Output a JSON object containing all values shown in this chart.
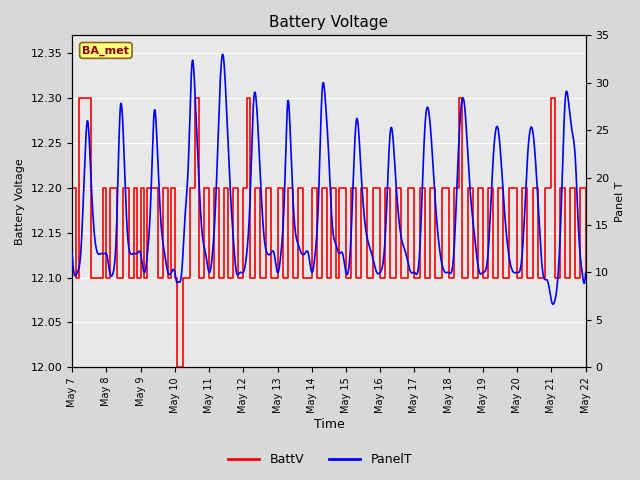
{
  "title": "Battery Voltage",
  "xlabel": "Time",
  "ylabel_left": "Battery Voltage",
  "ylabel_right": "Panel T",
  "legend_label_batt": "BattV",
  "legend_label_panel": "PanelT",
  "station_label": "BA_met",
  "ylim_left": [
    12.0,
    12.37
  ],
  "ylim_right": [
    0,
    35
  ],
  "yticks_left": [
    12.0,
    12.05,
    12.1,
    12.15,
    12.2,
    12.25,
    12.3,
    12.35
  ],
  "yticks_right": [
    0,
    5,
    10,
    15,
    20,
    25,
    30,
    35
  ],
  "xtick_labels": [
    "May 7",
    "May 8",
    "May 9",
    "May 10",
    "May 11",
    "May 12",
    "May 13",
    "May 14",
    "May 15",
    "May 16",
    "May 17",
    "May 18",
    "May 19",
    "May 20",
    "May 21",
    "May 22"
  ],
  "batt_color": "#FF0000",
  "panel_color": "#0000FF",
  "background_color": "#e8e8e8",
  "fig_bg_color": "#d8d8d8",
  "station_box_facecolor": "#FFFF80",
  "station_box_edgecolor": "#8B6914",
  "grid_color": "#ffffff",
  "batt_linewidth": 1.2,
  "panel_linewidth": 1.2
}
